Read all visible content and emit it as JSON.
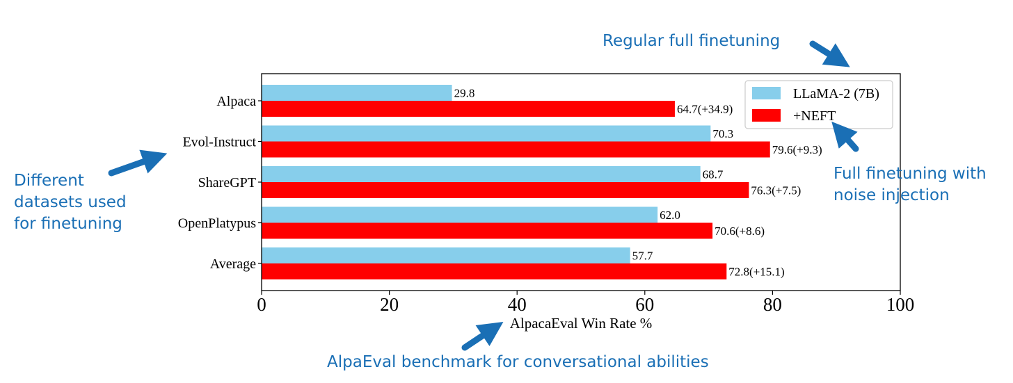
{
  "chart_data": {
    "type": "bar",
    "orientation": "horizontal",
    "categories": [
      "Alpaca",
      "Evol-Instruct",
      "ShareGPT",
      "OpenPlatypus",
      "Average"
    ],
    "series": [
      {
        "name": "LLaMA-2 (7B)",
        "values": [
          29.8,
          70.3,
          68.7,
          62.0,
          57.7
        ],
        "labels": [
          "29.8",
          "70.3",
          "68.7",
          "62.0",
          "57.7"
        ],
        "color": "#87ceeb"
      },
      {
        "name": "+NEFT",
        "values": [
          64.7,
          79.6,
          76.3,
          70.6,
          72.8
        ],
        "labels": [
          "64.7(+34.9)",
          "79.6(+9.3)",
          "76.3(+7.5)",
          "70.6(+8.6)",
          "72.8(+15.1)"
        ],
        "color": "#ff0000"
      }
    ],
    "xlabel": "AlpacaEval Win Rate %",
    "ylabel": "",
    "xlim": [
      0,
      100
    ],
    "xticks": [
      "0",
      "20",
      "40",
      "60",
      "80",
      "100"
    ],
    "legend_position": "top-right",
    "grid": false
  },
  "annotations": {
    "regular": [
      "Regular full finetuning"
    ],
    "neft": [
      "Full finetuning with",
      "noise injection"
    ],
    "datasets": [
      "Different",
      "datasets used",
      "for finetuning"
    ],
    "benchmark": [
      "AlpaEval benchmark for conversational abilities"
    ]
  },
  "annotation_color": "#1a6fb5"
}
